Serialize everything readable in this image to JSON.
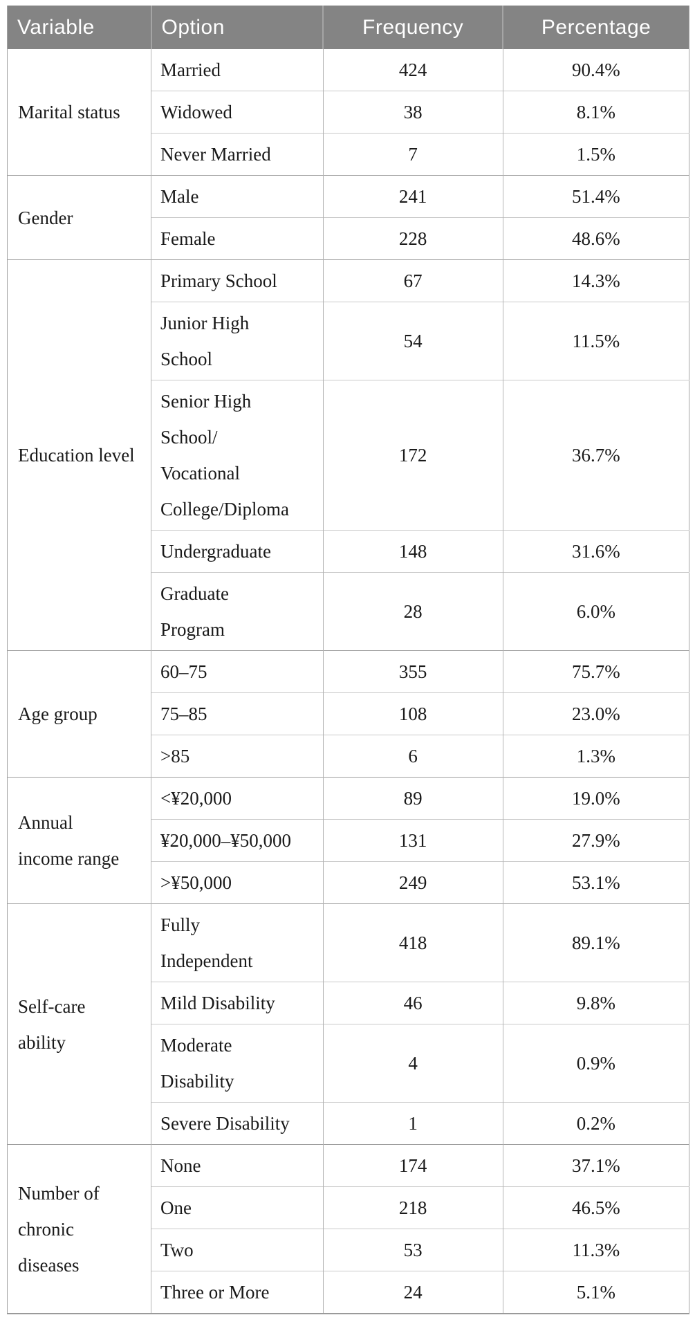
{
  "header": {
    "columns": [
      "Variable",
      "Option",
      "Frequency",
      "Percentage"
    ]
  },
  "groups": [
    {
      "variable": "Marital status",
      "rows": [
        {
          "option": "Married",
          "frequency": "424",
          "percentage": "90.4%"
        },
        {
          "option": "Widowed",
          "frequency": "38",
          "percentage": "8.1%"
        },
        {
          "option": "Never Married",
          "frequency": "7",
          "percentage": "1.5%"
        }
      ]
    },
    {
      "variable": "Gender",
      "rows": [
        {
          "option": "Male",
          "frequency": "241",
          "percentage": "51.4%"
        },
        {
          "option": "Female",
          "frequency": "228",
          "percentage": "48.6%"
        }
      ]
    },
    {
      "variable": "Education level",
      "rows": [
        {
          "option": "Primary School",
          "frequency": "67",
          "percentage": "14.3%"
        },
        {
          "option": "Junior High\nSchool",
          "frequency": "54",
          "percentage": "11.5%"
        },
        {
          "option": "Senior High\nSchool/\nVocational\nCollege/Diploma",
          "frequency": "172",
          "percentage": "36.7%"
        },
        {
          "option": "Undergraduate",
          "frequency": "148",
          "percentage": "31.6%"
        },
        {
          "option": "Graduate\nProgram",
          "frequency": "28",
          "percentage": "6.0%"
        }
      ]
    },
    {
      "variable": "Age group",
      "rows": [
        {
          "option": "60–75",
          "frequency": "355",
          "percentage": "75.7%"
        },
        {
          "option": "75–85",
          "frequency": "108",
          "percentage": "23.0%"
        },
        {
          "option": ">85",
          "frequency": "6",
          "percentage": "1.3%"
        }
      ]
    },
    {
      "variable": "Annual\nincome range",
      "rows": [
        {
          "option": "<¥20,000",
          "frequency": "89",
          "percentage": "19.0%"
        },
        {
          "option": "¥20,000–¥50,000",
          "frequency": "131",
          "percentage": "27.9%"
        },
        {
          "option": ">¥50,000",
          "frequency": "249",
          "percentage": "53.1%"
        }
      ]
    },
    {
      "variable": "Self-care\nability",
      "rows": [
        {
          "option": "Fully\nIndependent",
          "frequency": "418",
          "percentage": "89.1%"
        },
        {
          "option": "Mild Disability",
          "frequency": "46",
          "percentage": "9.8%"
        },
        {
          "option": "Moderate\nDisability",
          "frequency": "4",
          "percentage": "0.9%"
        },
        {
          "option": "Severe Disability",
          "frequency": "1",
          "percentage": "0.2%"
        }
      ]
    },
    {
      "variable": "Number of\nchronic\ndiseases",
      "rows": [
        {
          "option": "None",
          "frequency": "174",
          "percentage": "37.1%"
        },
        {
          "option": "One",
          "frequency": "218",
          "percentage": "46.5%"
        },
        {
          "option": "Two",
          "frequency": "53",
          "percentage": "11.3%"
        },
        {
          "option": "Three or More",
          "frequency": "24",
          "percentage": "5.1%"
        }
      ]
    }
  ],
  "colors": {
    "header_background": "#848484",
    "header_text": "#ffffff",
    "body_text": "#1a1a1a",
    "border_outer": "#a3a3a3",
    "border_group_divider": "#9e9e9e",
    "border_row_divider": "#c9c9c9",
    "border_column": "#b3b3b3"
  }
}
